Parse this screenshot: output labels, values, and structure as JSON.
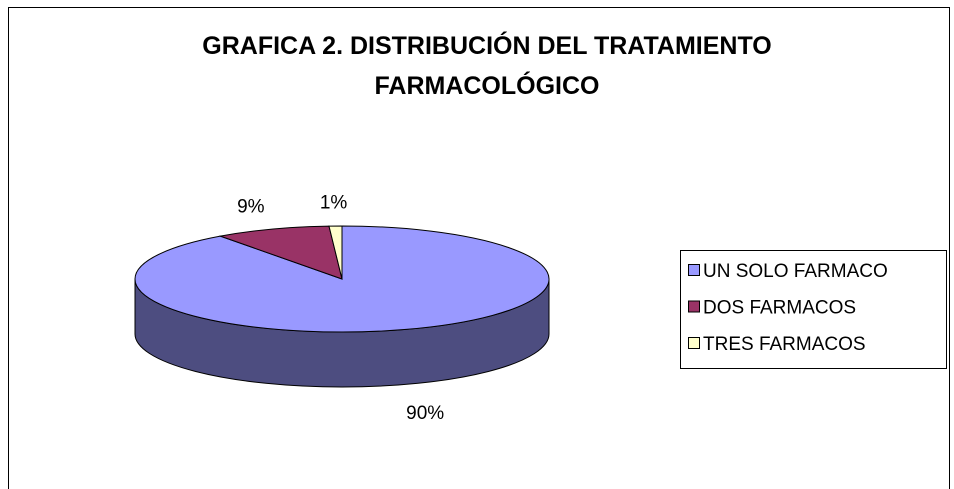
{
  "chart_data": {
    "type": "pie",
    "title": "GRAFICA 2. DISTRIBUCIÓN DEL TRATAMIENTO FARMACOLÓGICO",
    "categories": [
      "UN SOLO FARMACO",
      "DOS FARMACOS",
      "TRES FARMACOS"
    ],
    "values": [
      90,
      9,
      1
    ],
    "value_labels": [
      "90%",
      "9%",
      "1%"
    ],
    "colors": [
      "#9999ff",
      "#993366",
      "#ffffcc"
    ],
    "legend": "right"
  }
}
